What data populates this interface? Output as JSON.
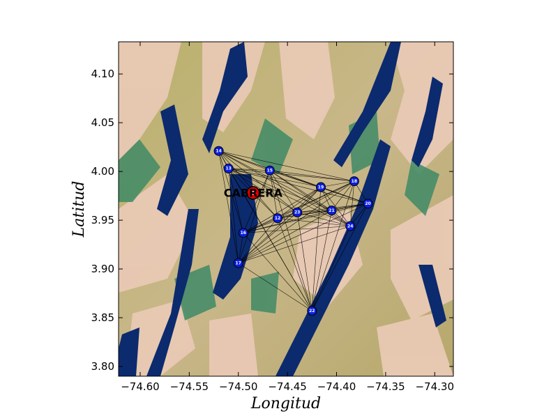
{
  "map": {
    "xlabel": "Longitud",
    "ylabel": "Latitud",
    "xlim": [
      -74.622,
      -74.281
    ],
    "ylim": [
      3.79,
      4.133
    ],
    "xticks": [
      -74.6,
      -74.55,
      -74.5,
      -74.45,
      -74.4,
      -74.35,
      -74.3
    ],
    "xtick_labels": [
      "−74.60",
      "−74.55",
      "−74.50",
      "−74.45",
      "−74.40",
      "−74.35",
      "−74.30"
    ],
    "yticks": [
      3.8,
      3.85,
      3.9,
      3.95,
      4.0,
      4.05,
      4.1
    ],
    "ytick_labels": [
      "3.80",
      "3.85",
      "3.90",
      "3.95",
      "4.00",
      "4.05",
      "4.10"
    ],
    "basemap": "shaded-relief terrain (blue-green-tan colormap)",
    "colors": {
      "station_fill": "#0a1ee0",
      "town_marker": "#e00000",
      "connection_line": "#000000",
      "terrain_dark": "#0c2a6e",
      "terrain_mid": "#3f8a66",
      "terrain_olive": "#a8a85c",
      "terrain_light": "#e9c9b4"
    },
    "town": {
      "name": "CABRERA",
      "lon": -74.485,
      "lat": 3.978
    },
    "stations": [
      {
        "id": "12",
        "lon": -74.46,
        "lat": 3.952
      },
      {
        "id": "13",
        "lon": -74.51,
        "lat": 4.003
      },
      {
        "id": "14",
        "lon": -74.52,
        "lat": 4.021
      },
      {
        "id": "15",
        "lon": -74.468,
        "lat": 4.001
      },
      {
        "id": "16",
        "lon": -74.495,
        "lat": 3.937
      },
      {
        "id": "17",
        "lon": -74.5,
        "lat": 3.906
      },
      {
        "id": "18",
        "lon": -74.382,
        "lat": 3.99
      },
      {
        "id": "19",
        "lon": -74.416,
        "lat": 3.984
      },
      {
        "id": "20",
        "lon": -74.368,
        "lat": 3.967
      },
      {
        "id": "21",
        "lon": -74.405,
        "lat": 3.96
      },
      {
        "id": "22",
        "lon": -74.425,
        "lat": 3.857
      },
      {
        "id": "23",
        "lon": -74.44,
        "lat": 3.958
      },
      {
        "id": "24",
        "lon": -74.386,
        "lat": 3.944
      }
    ]
  }
}
